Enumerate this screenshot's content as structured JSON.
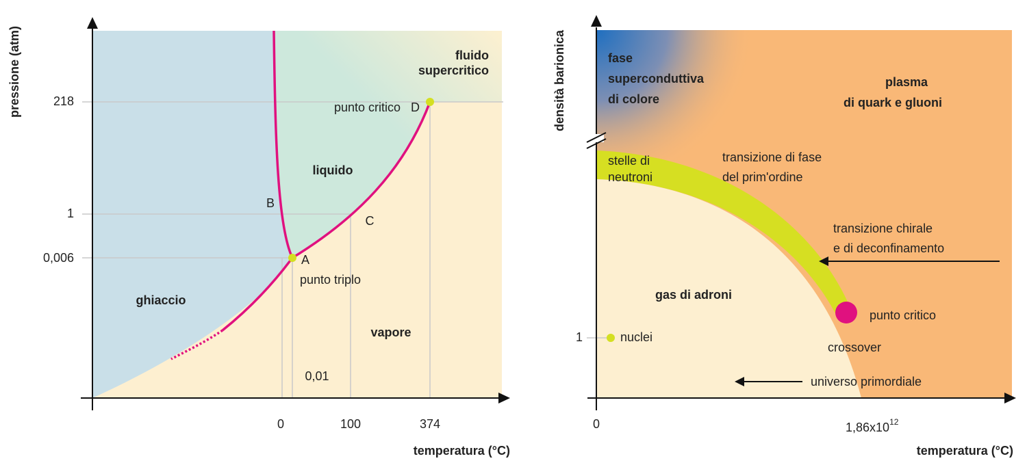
{
  "left": {
    "y_axis_label": "pressione (atm)",
    "x_axis_label": "temperatura (°C)",
    "y_ticks": [
      "218",
      "1",
      "0,006"
    ],
    "x_ticks": [
      "0",
      "100",
      "374"
    ],
    "x_note": "0,01",
    "regions": {
      "ice": "ghiaccio",
      "liquid": "liquido",
      "vapor": "vapore",
      "fluid_line1": "fluido",
      "fluid_line2": "supercritico"
    },
    "points": {
      "A": "A",
      "A_note": "punto triplo",
      "B": "B",
      "C": "C",
      "D": "D",
      "D_note": "punto critico"
    }
  },
  "right": {
    "y_axis_label": "densità barionica",
    "x_axis_label": "temperatura (°C)",
    "y_tick": "1",
    "x_tick_zero": "0",
    "x_tick_base": "1,86x10",
    "x_tick_exponent": "12",
    "labels": {
      "color_sc_1": "fase",
      "color_sc_2": "superconduttiva",
      "color_sc_3": "di colore",
      "plasma_1": "plasma",
      "plasma_2": "di quark e gluoni",
      "neutron_1": "stelle di",
      "neutron_2": "neutroni",
      "first_order_1": "transizione di fase",
      "first_order_2": "del prim'ordine",
      "chiral_1": "transizione chirale",
      "chiral_2": "e di deconfinamento",
      "hadron_gas": "gas di adroni",
      "nuclei": "nuclei",
      "critical_point": "punto critico",
      "crossover": "crossover",
      "early_universe": "universo primordiale"
    }
  }
}
